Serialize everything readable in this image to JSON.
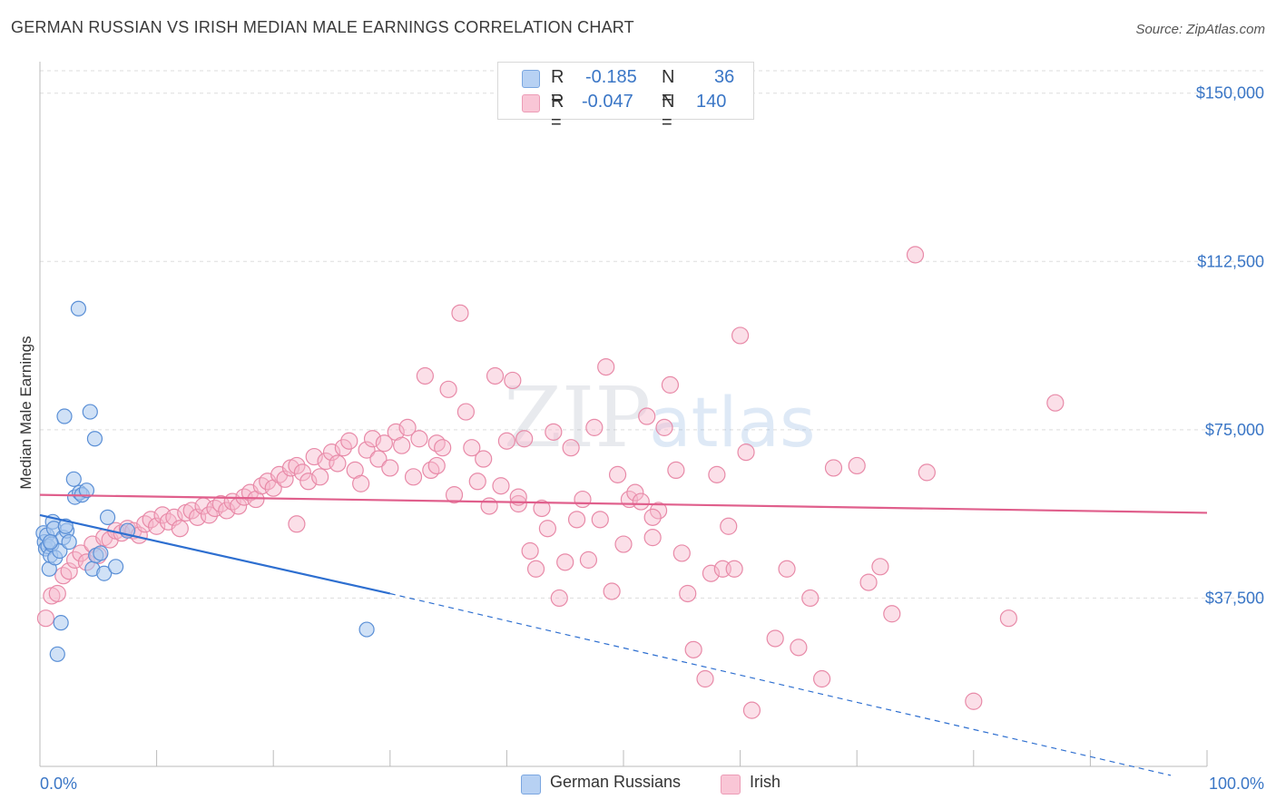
{
  "title": "GERMAN RUSSIAN VS IRISH MEDIAN MALE EARNINGS CORRELATION CHART",
  "source": "Source: ZipAtlas.com",
  "watermark": {
    "zip": "ZIP",
    "atlas": "atlas"
  },
  "colors": {
    "blue_fill": "#aac8ef",
    "blue_stroke": "#5a8fd6",
    "blue_line": "#2e6fd0",
    "pink_fill": "#f7b9cc",
    "pink_stroke": "#e88aa8",
    "pink_line": "#e05f8c",
    "axis_text": "#3a76c6",
    "grid": "#dddddd"
  },
  "legend": {
    "rows": [
      {
        "r_label": "R =",
        "r_value": "-0.185",
        "n_label": "N =",
        "n_value": "36",
        "series": "blue"
      },
      {
        "r_label": "R =",
        "r_value": "-0.047",
        "n_label": "N =",
        "n_value": "140",
        "series": "pink"
      }
    ]
  },
  "bottom_legend": {
    "blue": "German Russians",
    "pink": "Irish"
  },
  "chart_data": {
    "type": "scatter",
    "title": "GERMAN RUSSIAN VS IRISH MEDIAN MALE EARNINGS CORRELATION CHART",
    "xlabel": "",
    "ylabel": "Median Male Earnings",
    "xlim": [
      0,
      100
    ],
    "ylim": [
      0,
      155000
    ],
    "x_tick_labels": [
      "0.0%",
      "100.0%"
    ],
    "y_ticks": [
      37500,
      75000,
      112500,
      150000
    ],
    "y_tick_labels": [
      "$37,500",
      "$75,000",
      "$112,500",
      "$150,000"
    ],
    "series": [
      {
        "name": "German Russians",
        "color": "blue",
        "trend": {
          "x": [
            0,
            30
          ],
          "y": [
            56000,
            38500
          ],
          "dashed_extension_to": [
            100,
            -2000
          ]
        },
        "points": [
          [
            0.3,
            52000
          ],
          [
            0.4,
            50000
          ],
          [
            0.5,
            48500
          ],
          [
            0.6,
            51500
          ],
          [
            0.7,
            49000
          ],
          [
            0.8,
            44000
          ],
          [
            0.9,
            47000
          ],
          [
            1.0,
            49500
          ],
          [
            1.1,
            54500
          ],
          [
            1.2,
            53000
          ],
          [
            1.3,
            46500
          ],
          [
            1.5,
            25000
          ],
          [
            1.7,
            48000
          ],
          [
            1.8,
            32000
          ],
          [
            2.0,
            51000
          ],
          [
            2.1,
            78000
          ],
          [
            2.3,
            52500
          ],
          [
            2.5,
            50000
          ],
          [
            2.9,
            64000
          ],
          [
            3.0,
            60000
          ],
          [
            3.3,
            102000
          ],
          [
            3.4,
            61000
          ],
          [
            3.6,
            60500
          ],
          [
            4.0,
            61500
          ],
          [
            4.3,
            79000
          ],
          [
            4.5,
            44000
          ],
          [
            4.7,
            73000
          ],
          [
            4.8,
            47000
          ],
          [
            5.2,
            47500
          ],
          [
            5.5,
            43000
          ],
          [
            5.8,
            55500
          ],
          [
            6.5,
            44500
          ],
          [
            7.5,
            52500
          ],
          [
            28.0,
            30500
          ],
          [
            0.9,
            50000
          ],
          [
            2.2,
            53500
          ]
        ]
      },
      {
        "name": "Irish",
        "color": "pink",
        "trend": {
          "x": [
            0,
            100
          ],
          "y": [
            60500,
            56500
          ]
        },
        "points": [
          [
            0.5,
            33000
          ],
          [
            1.0,
            38000
          ],
          [
            1.5,
            38500
          ],
          [
            2.0,
            42500
          ],
          [
            2.5,
            43500
          ],
          [
            3.0,
            46000
          ],
          [
            3.5,
            47500
          ],
          [
            4.0,
            45500
          ],
          [
            4.5,
            49500
          ],
          [
            5.0,
            47000
          ],
          [
            5.5,
            51000
          ],
          [
            6.0,
            50500
          ],
          [
            6.5,
            52500
          ],
          [
            7.0,
            52000
          ],
          [
            7.5,
            53000
          ],
          [
            8.0,
            52500
          ],
          [
            8.5,
            51500
          ],
          [
            9.0,
            54000
          ],
          [
            9.5,
            55000
          ],
          [
            10.0,
            53500
          ],
          [
            10.5,
            56000
          ],
          [
            11.0,
            54500
          ],
          [
            11.5,
            55500
          ],
          [
            12.0,
            53000
          ],
          [
            12.5,
            56500
          ],
          [
            13.0,
            57000
          ],
          [
            13.5,
            55500
          ],
          [
            14.0,
            58000
          ],
          [
            14.5,
            56000
          ],
          [
            15.0,
            57500
          ],
          [
            15.5,
            58500
          ],
          [
            16.0,
            57000
          ],
          [
            16.5,
            59000
          ],
          [
            17.0,
            58000
          ],
          [
            17.5,
            60000
          ],
          [
            18.0,
            61000
          ],
          [
            18.5,
            59500
          ],
          [
            19.0,
            62500
          ],
          [
            19.5,
            63500
          ],
          [
            20.0,
            62000
          ],
          [
            20.5,
            65000
          ],
          [
            21.0,
            64000
          ],
          [
            21.5,
            66500
          ],
          [
            22.0,
            67000
          ],
          [
            22.5,
            65500
          ],
          [
            23.0,
            63500
          ],
          [
            23.5,
            69000
          ],
          [
            24.0,
            64500
          ],
          [
            24.5,
            68000
          ],
          [
            25.0,
            70000
          ],
          [
            25.5,
            67500
          ],
          [
            26.0,
            71000
          ],
          [
            26.5,
            72500
          ],
          [
            27.0,
            66000
          ],
          [
            27.5,
            63000
          ],
          [
            28.0,
            70500
          ],
          [
            28.5,
            73000
          ],
          [
            29.0,
            68500
          ],
          [
            29.5,
            72000
          ],
          [
            30.0,
            66500
          ],
          [
            30.5,
            74500
          ],
          [
            31.0,
            71500
          ],
          [
            31.5,
            75500
          ],
          [
            32.0,
            64500
          ],
          [
            32.5,
            73000
          ],
          [
            33.0,
            87000
          ],
          [
            33.5,
            66000
          ],
          [
            34.0,
            72000
          ],
          [
            34.5,
            71000
          ],
          [
            35.0,
            84000
          ],
          [
            35.5,
            60500
          ],
          [
            36.0,
            101000
          ],
          [
            36.5,
            79000
          ],
          [
            37.0,
            71000
          ],
          [
            37.5,
            63500
          ],
          [
            38.0,
            68500
          ],
          [
            38.5,
            58000
          ],
          [
            39.0,
            87000
          ],
          [
            39.5,
            62500
          ],
          [
            40.0,
            72500
          ],
          [
            40.5,
            86000
          ],
          [
            41.0,
            58500
          ],
          [
            41.5,
            73000
          ],
          [
            42.0,
            48000
          ],
          [
            42.5,
            44000
          ],
          [
            43.0,
            57500
          ],
          [
            43.5,
            53000
          ],
          [
            44.0,
            74500
          ],
          [
            44.5,
            37500
          ],
          [
            45.0,
            45500
          ],
          [
            45.5,
            71000
          ],
          [
            46.0,
            55000
          ],
          [
            46.5,
            59500
          ],
          [
            47.0,
            46000
          ],
          [
            47.5,
            75500
          ],
          [
            48.0,
            55000
          ],
          [
            48.5,
            89000
          ],
          [
            49.0,
            39000
          ],
          [
            49.5,
            65000
          ],
          [
            50.0,
            49500
          ],
          [
            50.5,
            59500
          ],
          [
            51.0,
            61000
          ],
          [
            51.5,
            59000
          ],
          [
            52.0,
            78000
          ],
          [
            52.5,
            51000
          ],
          [
            53.0,
            57000
          ],
          [
            53.5,
            75500
          ],
          [
            54.0,
            85000
          ],
          [
            54.5,
            66000
          ],
          [
            55.0,
            47500
          ],
          [
            55.5,
            38500
          ],
          [
            56.0,
            26000
          ],
          [
            57.0,
            19500
          ],
          [
            57.5,
            43000
          ],
          [
            58.0,
            65000
          ],
          [
            58.5,
            44000
          ],
          [
            59.0,
            53500
          ],
          [
            59.5,
            44000
          ],
          [
            60.0,
            96000
          ],
          [
            60.5,
            70000
          ],
          [
            61.0,
            12500
          ],
          [
            63.0,
            28500
          ],
          [
            64.0,
            44000
          ],
          [
            65.0,
            26500
          ],
          [
            66.0,
            37500
          ],
          [
            67.0,
            19500
          ],
          [
            68.0,
            66500
          ],
          [
            70.0,
            67000
          ],
          [
            71.0,
            41000
          ],
          [
            72.0,
            44500
          ],
          [
            73.0,
            34000
          ],
          [
            75.0,
            114000
          ],
          [
            76.0,
            65500
          ],
          [
            80.0,
            14500
          ],
          [
            83.0,
            33000
          ],
          [
            87.0,
            81000
          ],
          [
            34.0,
            67000
          ],
          [
            22.0,
            54000
          ],
          [
            41.0,
            60000
          ],
          [
            52.5,
            55500
          ]
        ]
      }
    ]
  }
}
